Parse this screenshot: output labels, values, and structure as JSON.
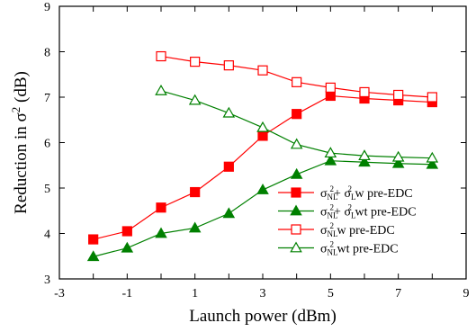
{
  "chart_data": {
    "type": "line",
    "xlabel": "Launch power (dBm)",
    "ylabel": {
      "base": "Reduction in σ",
      "sup": "2",
      "unit": " (dB)"
    },
    "xlim": [
      -3,
      9
    ],
    "ylim": [
      3,
      9
    ],
    "xticks": [
      -3,
      -2,
      -1,
      0,
      1,
      2,
      3,
      4,
      5,
      6,
      7,
      8,
      9
    ],
    "xtick_labels": [
      "-3",
      "",
      "-1",
      "",
      "1",
      "",
      "3",
      "",
      "5",
      "",
      "7",
      "",
      "9"
    ],
    "yticks": [
      3,
      4,
      5,
      6,
      7,
      8,
      9
    ],
    "ytick_labels": [
      "3",
      "4",
      "5",
      "6",
      "7",
      "8",
      "9"
    ],
    "grid": false,
    "legend_position": "bottom-right",
    "series": [
      {
        "name": "σNL² + σL² w pre-EDC",
        "legend": [
          [
            "σ",
            ""
          ],
          [
            "NL",
            "sub"
          ],
          [
            "2",
            "sup"
          ],
          [
            "+ σ",
            ""
          ],
          [
            "L",
            "sub"
          ],
          [
            "2",
            "sup"
          ],
          [
            " w pre-EDC",
            ""
          ]
        ],
        "color": "#ff0000",
        "marker": "square",
        "filled": true,
        "x": [
          -2,
          -1,
          0,
          1,
          2,
          3,
          4,
          5,
          6,
          7,
          8
        ],
        "y": [
          3.87,
          4.05,
          4.57,
          4.91,
          5.47,
          6.15,
          6.63,
          7.03,
          6.97,
          6.93,
          6.89
        ]
      },
      {
        "name": "σNL² + σL² wt pre-EDC",
        "legend": [
          [
            "σ",
            ""
          ],
          [
            "NL",
            "sub"
          ],
          [
            "2",
            "sup"
          ],
          [
            "+ σ",
            ""
          ],
          [
            "L",
            "sub"
          ],
          [
            "2",
            "sup"
          ],
          [
            " wt pre-EDC",
            ""
          ]
        ],
        "color": "#008000",
        "marker": "triangle",
        "filled": true,
        "x": [
          -2,
          -1,
          0,
          1,
          2,
          3,
          4,
          5,
          6,
          7,
          8
        ],
        "y": [
          3.49,
          3.68,
          4.0,
          4.12,
          4.44,
          4.96,
          5.3,
          5.6,
          5.57,
          5.54,
          5.52
        ]
      },
      {
        "name": "σNL² w pre-EDC",
        "legend": [
          [
            "σ",
            ""
          ],
          [
            "NL",
            "sub"
          ],
          [
            "2",
            "sup"
          ],
          [
            " w pre-EDC",
            ""
          ]
        ],
        "color": "#ff0000",
        "marker": "square",
        "filled": false,
        "x": [
          0,
          1,
          2,
          3,
          4,
          5,
          6,
          7,
          8
        ],
        "y": [
          7.9,
          7.78,
          7.7,
          7.59,
          7.33,
          7.21,
          7.11,
          7.05,
          7.0
        ]
      },
      {
        "name": "σNL² wt pre-EDC",
        "legend": [
          [
            "σ",
            ""
          ],
          [
            "NL",
            "sub"
          ],
          [
            "2",
            "sup"
          ],
          [
            " wt pre-EDC",
            ""
          ]
        ],
        "color": "#008000",
        "marker": "triangle",
        "filled": false,
        "x": [
          0,
          1,
          2,
          3,
          4,
          5,
          6,
          7,
          8
        ],
        "y": [
          7.14,
          6.93,
          6.65,
          6.33,
          5.96,
          5.77,
          5.71,
          5.68,
          5.66
        ]
      }
    ]
  }
}
